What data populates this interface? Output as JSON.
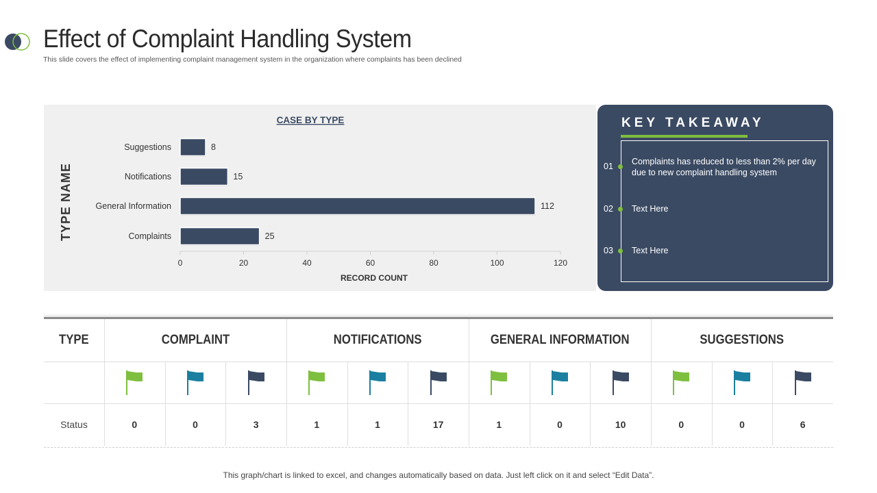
{
  "header": {
    "title": "Effect of Complaint Handling System",
    "subtitle": "This slide covers the effect of implementing  complaint management system in the organization where complaints  has been declined"
  },
  "chart_data": {
    "type": "bar",
    "orientation": "horizontal",
    "title": "CASE BY TYPE",
    "xlabel": "RECORD COUNT",
    "ylabel": "TYPE NAME",
    "categories": [
      "Suggestions",
      "Notifications",
      "General Information",
      "Complaints"
    ],
    "values": [
      8,
      15,
      112,
      25
    ],
    "xlim": [
      0,
      120
    ],
    "xticks": [
      0,
      20,
      40,
      60,
      80,
      100,
      120
    ],
    "bar_color": "#3b4a63"
  },
  "takeaway": {
    "title": "KEY TAKEAWAY",
    "items": [
      {
        "num": "01",
        "text": "Complaints has reduced to less than 2% per day due to new complaint handling system"
      },
      {
        "num": "02",
        "text": "Text Here"
      },
      {
        "num": "03",
        "text": "Text Here"
      }
    ]
  },
  "table": {
    "type_header": "TYPE",
    "groups": [
      "COMPLAINT",
      "NOTIFICATIONS",
      "GENERAL INFORMATION",
      "SUGGESTIONS"
    ],
    "flag_colors": [
      "#7fbf3f",
      "#1a7fa0",
      "#3b4a63"
    ],
    "row_label": "Status",
    "values": [
      "0",
      "0",
      "3",
      "1",
      "1",
      "17",
      "1",
      "0",
      "10",
      "0",
      "0",
      "6"
    ]
  },
  "footer": {
    "note": "This graph/chart is linked to excel, and changes automatically based on data. Just left click on it and select “Edit Data”."
  }
}
